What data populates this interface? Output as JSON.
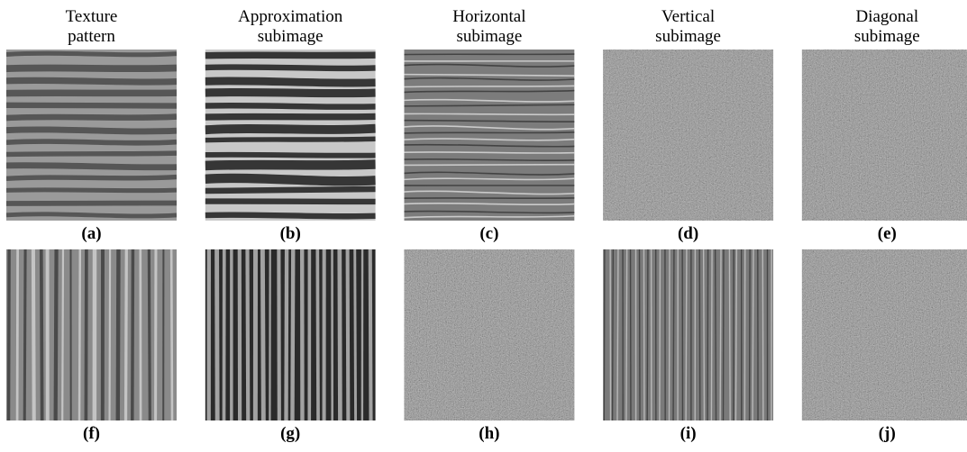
{
  "figure": {
    "headers": [
      [
        "Texture",
        "pattern"
      ],
      [
        "Approximation",
        "subimage"
      ],
      [
        "Horizontal",
        "subimage"
      ],
      [
        "Vertical",
        "subimage"
      ],
      [
        "Diagonal",
        "subimage"
      ]
    ],
    "rows": [
      [
        "(a)",
        "(b)",
        "(c)",
        "(d)",
        "(e)"
      ],
      [
        "(f)",
        "(g)",
        "(h)",
        "(i)",
        "(j)"
      ]
    ]
  }
}
